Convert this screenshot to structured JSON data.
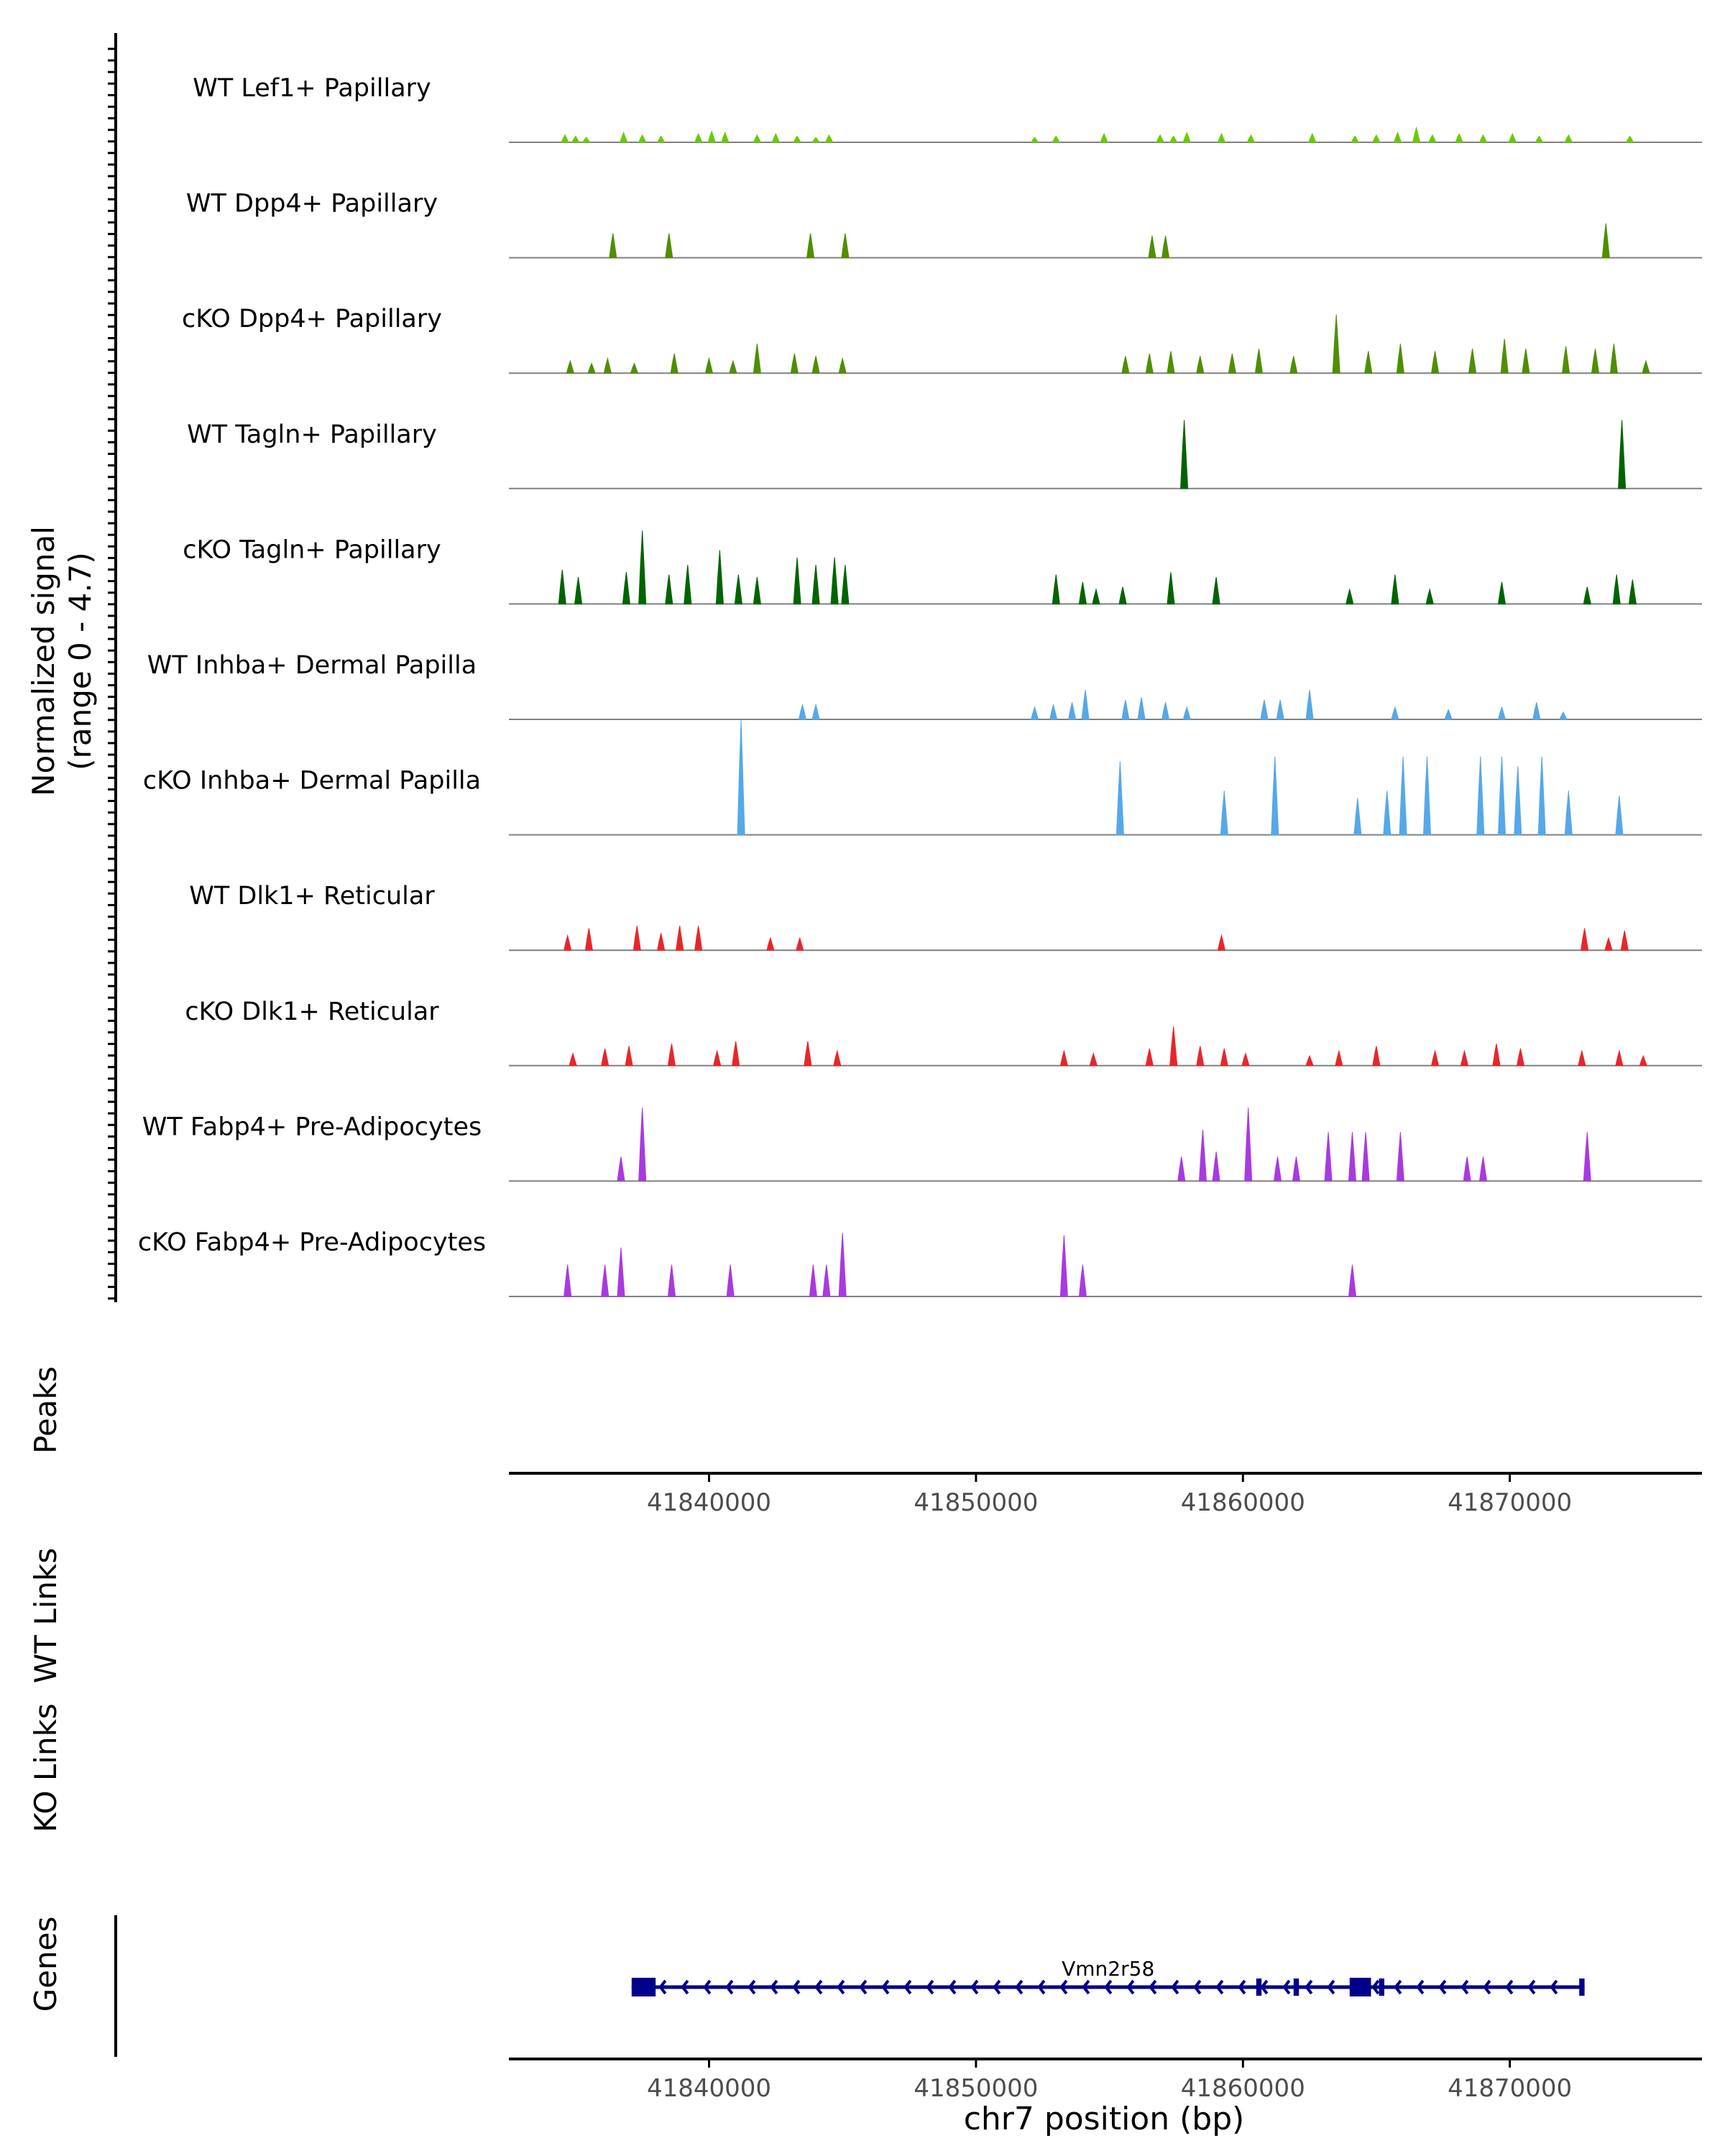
{
  "chart_data": {
    "type": "area",
    "title": "",
    "ylabel_lines": [
      "Normalized signal",
      "(range 0 - 4.7)"
    ],
    "y_range": [
      0,
      4.7
    ],
    "x_range": [
      41832500,
      41877200
    ],
    "xlabel": "chr7 position (bp)",
    "x_ticks": [
      41840000,
      41850000,
      41860000,
      41870000
    ],
    "x_tick_labels": [
      "41840000",
      "41850000",
      "41860000",
      "41870000"
    ],
    "track_labels": {
      "peaks": "Peaks",
      "wt_links": "WT Links",
      "ko_links": "KO Links",
      "genes": "Genes"
    },
    "gene": {
      "name": "Vmn2r58",
      "strand": "-",
      "start": 41837100,
      "end": 41872800,
      "exons": [
        [
          41837100,
          41838000
        ],
        [
          41860500,
          41860700
        ],
        [
          41861900,
          41862100
        ],
        [
          41864000,
          41864800
        ],
        [
          41865100,
          41865300
        ],
        [
          41872600,
          41872800
        ]
      ]
    },
    "series": [
      {
        "name": "WT Lef1+ Papillary",
        "color": "#66CC00",
        "peaks": [
          [
            41834600,
            0.3
          ],
          [
            41835000,
            0.25
          ],
          [
            41835400,
            0.2
          ],
          [
            41836800,
            0.4
          ],
          [
            41837500,
            0.3
          ],
          [
            41838200,
            0.25
          ],
          [
            41839600,
            0.35
          ],
          [
            41840100,
            0.45
          ],
          [
            41840600,
            0.4
          ],
          [
            41841800,
            0.3
          ],
          [
            41842500,
            0.35
          ],
          [
            41843300,
            0.25
          ],
          [
            41844000,
            0.2
          ],
          [
            41844500,
            0.3
          ],
          [
            41852200,
            0.2
          ],
          [
            41853000,
            0.25
          ],
          [
            41854800,
            0.35
          ],
          [
            41856900,
            0.3
          ],
          [
            41857400,
            0.25
          ],
          [
            41857900,
            0.4
          ],
          [
            41859200,
            0.35
          ],
          [
            41860300,
            0.3
          ],
          [
            41862600,
            0.35
          ],
          [
            41864200,
            0.25
          ],
          [
            41865000,
            0.3
          ],
          [
            41865800,
            0.4
          ],
          [
            41866500,
            0.6
          ],
          [
            41867100,
            0.3
          ],
          [
            41868100,
            0.35
          ],
          [
            41869000,
            0.3
          ],
          [
            41870100,
            0.35
          ],
          [
            41871100,
            0.25
          ],
          [
            41872200,
            0.3
          ],
          [
            41874500,
            0.25
          ]
        ]
      },
      {
        "name": "WT Dpp4+ Papillary",
        "color": "#4F8F00",
        "peaks": [
          [
            41836400,
            1.0
          ],
          [
            41838500,
            1.0
          ],
          [
            41843800,
            1.0
          ],
          [
            41845100,
            1.0
          ],
          [
            41856600,
            0.9
          ],
          [
            41857100,
            0.9
          ],
          [
            41873600,
            1.4
          ]
        ]
      },
      {
        "name": "cKO Dpp4+ Papillary",
        "color": "#4F8F00",
        "peaks": [
          [
            41834800,
            0.5
          ],
          [
            41835600,
            0.4
          ],
          [
            41836200,
            0.6
          ],
          [
            41837200,
            0.4
          ],
          [
            41838700,
            0.8
          ],
          [
            41840000,
            0.6
          ],
          [
            41840900,
            0.5
          ],
          [
            41841800,
            1.2
          ],
          [
            41843200,
            0.8
          ],
          [
            41844000,
            0.7
          ],
          [
            41845000,
            0.6
          ],
          [
            41855600,
            0.7
          ],
          [
            41856500,
            0.8
          ],
          [
            41857300,
            0.9
          ],
          [
            41858400,
            0.7
          ],
          [
            41859600,
            0.8
          ],
          [
            41860600,
            1.0
          ],
          [
            41861900,
            0.7
          ],
          [
            41863500,
            2.4
          ],
          [
            41864700,
            0.9
          ],
          [
            41865900,
            1.2
          ],
          [
            41867200,
            0.9
          ],
          [
            41868600,
            1.0
          ],
          [
            41869800,
            1.4
          ],
          [
            41870600,
            1.0
          ],
          [
            41872100,
            1.1
          ],
          [
            41873200,
            1.0
          ],
          [
            41873900,
            1.2
          ],
          [
            41875100,
            0.5
          ]
        ]
      },
      {
        "name": "WT Tagln+ Papillary",
        "color": "#006400",
        "peaks": [
          [
            41857800,
            2.8
          ],
          [
            41874200,
            2.8
          ]
        ]
      },
      {
        "name": "cKO Tagln+ Papillary",
        "color": "#006400",
        "peaks": [
          [
            41834500,
            1.4
          ],
          [
            41835100,
            1.1
          ],
          [
            41836900,
            1.3
          ],
          [
            41837500,
            3.0
          ],
          [
            41838500,
            1.2
          ],
          [
            41839200,
            1.6
          ],
          [
            41840400,
            2.2
          ],
          [
            41841100,
            1.2
          ],
          [
            41841800,
            1.1
          ],
          [
            41843300,
            1.9
          ],
          [
            41844000,
            1.6
          ],
          [
            41844700,
            1.9
          ],
          [
            41845100,
            1.6
          ],
          [
            41853000,
            1.2
          ],
          [
            41854000,
            0.9
          ],
          [
            41854500,
            0.6
          ],
          [
            41855500,
            0.7
          ],
          [
            41857300,
            1.3
          ],
          [
            41859000,
            1.1
          ],
          [
            41864000,
            0.6
          ],
          [
            41865700,
            1.2
          ],
          [
            41867000,
            0.6
          ],
          [
            41869700,
            0.9
          ],
          [
            41872900,
            0.7
          ],
          [
            41874000,
            1.2
          ],
          [
            41874600,
            1.0
          ]
        ]
      },
      {
        "name": "WT Inhba+ Dermal Papilla",
        "color": "#56A8E8",
        "peaks": [
          [
            41843500,
            0.6
          ],
          [
            41844000,
            0.6
          ],
          [
            41852200,
            0.5
          ],
          [
            41852900,
            0.6
          ],
          [
            41853600,
            0.7
          ],
          [
            41854100,
            1.2
          ],
          [
            41855600,
            0.8
          ],
          [
            41856200,
            0.9
          ],
          [
            41857100,
            0.7
          ],
          [
            41857900,
            0.5
          ],
          [
            41860800,
            0.8
          ],
          [
            41861400,
            0.8
          ],
          [
            41862500,
            1.2
          ],
          [
            41865700,
            0.5
          ],
          [
            41867700,
            0.4
          ],
          [
            41869700,
            0.5
          ],
          [
            41871000,
            0.7
          ],
          [
            41872000,
            0.3
          ]
        ]
      },
      {
        "name": "cKO Inhba+ Dermal Papilla",
        "color": "#56A8E8",
        "peaks": [
          [
            41841200,
            4.7
          ],
          [
            41855400,
            3.0
          ],
          [
            41859300,
            1.8
          ],
          [
            41861200,
            3.2
          ],
          [
            41864300,
            1.5
          ],
          [
            41865400,
            1.8
          ],
          [
            41866000,
            3.2
          ],
          [
            41866900,
            3.2
          ],
          [
            41868900,
            3.2
          ],
          [
            41869700,
            3.2
          ],
          [
            41870300,
            2.8
          ],
          [
            41871200,
            3.2
          ],
          [
            41872200,
            1.8
          ],
          [
            41874100,
            1.6
          ]
        ]
      },
      {
        "name": "WT Dlk1+ Reticular",
        "color": "#E8262A",
        "peaks": [
          [
            41834700,
            0.6
          ],
          [
            41835500,
            0.9
          ],
          [
            41837300,
            1.0
          ],
          [
            41838200,
            0.7
          ],
          [
            41838900,
            1.0
          ],
          [
            41839600,
            1.0
          ],
          [
            41842300,
            0.5
          ],
          [
            41843400,
            0.5
          ],
          [
            41859200,
            0.6
          ],
          [
            41872800,
            0.9
          ],
          [
            41873700,
            0.5
          ],
          [
            41874300,
            0.8
          ]
        ]
      },
      {
        "name": "cKO Dlk1+ Reticular",
        "color": "#E8262A",
        "peaks": [
          [
            41834900,
            0.5
          ],
          [
            41836100,
            0.7
          ],
          [
            41837000,
            0.8
          ],
          [
            41838600,
            0.9
          ],
          [
            41840300,
            0.6
          ],
          [
            41841000,
            1.0
          ],
          [
            41843700,
            1.0
          ],
          [
            41844800,
            0.6
          ],
          [
            41853300,
            0.6
          ],
          [
            41854400,
            0.5
          ],
          [
            41856500,
            0.7
          ],
          [
            41857400,
            1.6
          ],
          [
            41858400,
            0.8
          ],
          [
            41859300,
            0.7
          ],
          [
            41860100,
            0.5
          ],
          [
            41862500,
            0.4
          ],
          [
            41863600,
            0.6
          ],
          [
            41865000,
            0.8
          ],
          [
            41867200,
            0.6
          ],
          [
            41868300,
            0.6
          ],
          [
            41869500,
            0.9
          ],
          [
            41870400,
            0.7
          ],
          [
            41872700,
            0.6
          ],
          [
            41874100,
            0.6
          ],
          [
            41875000,
            0.4
          ]
        ]
      },
      {
        "name": "WT Fabp4+ Pre-Adipocytes",
        "color": "#A83ADF",
        "peaks": [
          [
            41836700,
            1.0
          ],
          [
            41837500,
            3.0
          ],
          [
            41857700,
            1.0
          ],
          [
            41858500,
            2.1
          ],
          [
            41859000,
            1.2
          ],
          [
            41860200,
            3.0
          ],
          [
            41861300,
            1.0
          ],
          [
            41862000,
            1.0
          ],
          [
            41863200,
            2.0
          ],
          [
            41864100,
            2.0
          ],
          [
            41864600,
            2.0
          ],
          [
            41865900,
            2.0
          ],
          [
            41868400,
            1.0
          ],
          [
            41869000,
            1.0
          ],
          [
            41872900,
            2.0
          ]
        ]
      },
      {
        "name": "cKO Fabp4+ Pre-Adipocytes",
        "color": "#A83ADF",
        "peaks": [
          [
            41834700,
            1.3
          ],
          [
            41836100,
            1.3
          ],
          [
            41836700,
            2.0
          ],
          [
            41838600,
            1.3
          ],
          [
            41840800,
            1.3
          ],
          [
            41843900,
            1.3
          ],
          [
            41844400,
            1.3
          ],
          [
            41845000,
            2.6
          ],
          [
            41853300,
            2.5
          ],
          [
            41854000,
            1.3
          ],
          [
            41864100,
            1.3
          ]
        ]
      }
    ]
  }
}
